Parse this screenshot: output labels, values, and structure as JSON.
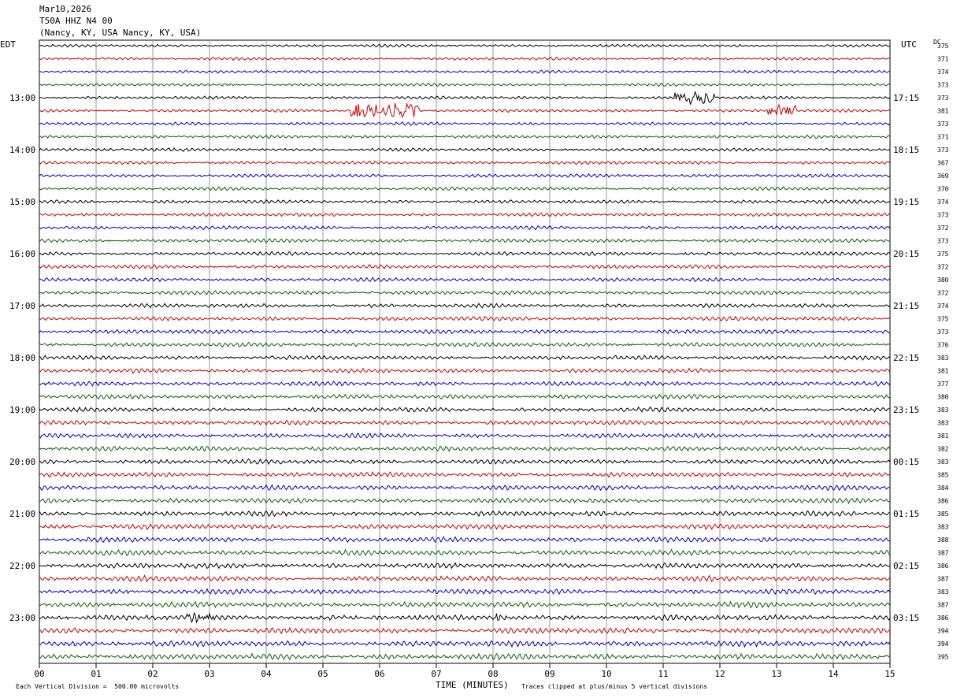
{
  "header": {
    "date": "Mar10,2026",
    "station": "T50A HHZ N4 00",
    "location": "(Nancy, KY, USA Nancy, KY, USA)"
  },
  "left_axis_label": "EDT",
  "right_axis_label": "UTC",
  "dc_label": "DC",
  "footer": {
    "scale_note": "Each Vertical Division =  500.00 microvolts",
    "xlabel": "TIME (MINUTES)",
    "clip_note": "Traces clipped at plus/minus 5 vertical divisions"
  },
  "colors": {
    "trace": [
      "#000000",
      "#cc0000",
      "#0000cc",
      "#006600"
    ],
    "grid": "#999999"
  },
  "chart_data": {
    "type": "line",
    "title": "T50A HHZ N4 00",
    "xlabel": "TIME (MINUTES)",
    "xlim": [
      0,
      15
    ],
    "x_tick_labels": [
      "00",
      "01",
      "02",
      "03",
      "04",
      "05",
      "06",
      "07",
      "08",
      "09",
      "10",
      "11",
      "12",
      "13",
      "14",
      "15"
    ],
    "rows": 48,
    "row_minutes": 15,
    "left_time_labels": [
      "13:00",
      "14:00",
      "15:00",
      "16:00",
      "17:00",
      "18:00",
      "19:00",
      "20:00",
      "21:00",
      "22:00",
      "23:00"
    ],
    "right_time_labels": [
      "17:15",
      "18:15",
      "19:15",
      "20:15",
      "21:15",
      "22:15",
      "23:15",
      "00:15",
      "01:15",
      "02:15",
      "03:15"
    ],
    "time_label_first_row": 4,
    "time_label_row_step": 4,
    "dc_offsets": [
      375,
      371,
      374,
      373,
      373,
      381,
      373,
      371,
      373,
      367,
      369,
      370,
      374,
      373,
      372,
      373,
      375,
      372,
      380,
      372,
      374,
      375,
      373,
      376,
      383,
      381,
      377,
      380,
      383,
      383,
      381,
      382,
      383,
      385,
      384,
      386,
      385,
      383,
      388,
      387,
      386,
      387,
      383,
      387,
      386,
      394,
      394,
      395
    ],
    "vertical_division_microvolts": 500.0,
    "clip_divisions": 5,
    "events": [
      {
        "row": 4,
        "minute": 11.2,
        "duration": 0.7,
        "amplitude": 1.8
      },
      {
        "row": 5,
        "minute": 5.5,
        "duration": 1.2,
        "amplitude": 2.0
      },
      {
        "row": 5,
        "minute": 12.85,
        "duration": 0.5,
        "amplitude": 1.5
      },
      {
        "row": 44,
        "minute": 2.6,
        "duration": 0.5,
        "amplitude": 1.3
      },
      {
        "row": 44,
        "minute": 8.05,
        "duration": 0.2,
        "amplitude": 1.2
      }
    ]
  }
}
